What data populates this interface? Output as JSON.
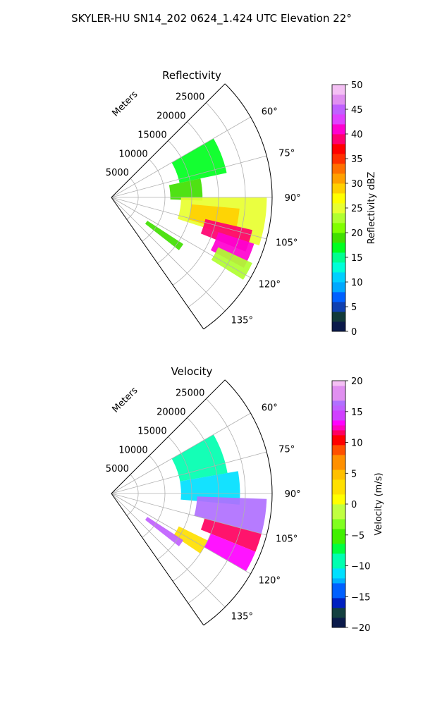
{
  "suptitle": "SKYLER-HU  SN14_202  0624_1.424 UTC Elevation 22°",
  "chart_data": [
    {
      "type": "polar-sector",
      "title": "Reflectivity",
      "radial_label": "Meters",
      "radial_ticks": [
        "5000",
        "10000",
        "15000",
        "20000",
        "25000"
      ],
      "angle_ticks": [
        "60°",
        "75°",
        "90°",
        "105°",
        "120°",
        "135°"
      ],
      "angle_range_deg": [
        45,
        145
      ],
      "radius_max_m": 30000,
      "grid": true,
      "colorbar": {
        "label": "Reflectivity dBZ",
        "ticks": [
          "0",
          "5",
          "10",
          "15",
          "20",
          "25",
          "30",
          "35",
          "40",
          "45",
          "50"
        ],
        "range": [
          0,
          50
        ]
      },
      "echoes": [
        {
          "az": [
            60,
            78
          ],
          "r": [
            13000,
            22000
          ],
          "value": 17
        },
        {
          "az": [
            78,
            92
          ],
          "r": [
            11000,
            17000
          ],
          "value": 18
        },
        {
          "az": [
            90,
            108
          ],
          "r": [
            13000,
            29000
          ],
          "value": 24
        },
        {
          "az": [
            95,
            106
          ],
          "r": [
            15000,
            24000
          ],
          "value": 28
        },
        {
          "az": [
            103,
            112
          ],
          "r": [
            18000,
            27000
          ],
          "value": 38
        },
        {
          "az": [
            108,
            118
          ],
          "r": [
            21000,
            28000
          ],
          "value": 40
        },
        {
          "az": [
            115,
            122
          ],
          "r": [
            22000,
            29000
          ],
          "value": 22
        },
        {
          "az": [
            123,
            128
          ],
          "r": [
            8000,
            16000
          ],
          "value": 18
        }
      ]
    },
    {
      "type": "polar-sector",
      "title": "Velocity",
      "radial_label": "Meters",
      "radial_ticks": [
        "5000",
        "10000",
        "15000",
        "20000",
        "25000"
      ],
      "angle_ticks": [
        "60°",
        "75°",
        "90°",
        "105°",
        "120°",
        "135°"
      ],
      "angle_range_deg": [
        45,
        145
      ],
      "radius_max_m": 30000,
      "grid": true,
      "colorbar": {
        "label": "Velocity (m/s)",
        "ticks": [
          "−20",
          "−15",
          "−10",
          "−5",
          "0",
          "5",
          "10",
          "15",
          "20"
        ],
        "range": [
          -20,
          20
        ]
      },
      "echoes": [
        {
          "az": [
            60,
            80
          ],
          "r": [
            13000,
            22000
          ],
          "value": -10
        },
        {
          "az": [
            80,
            95
          ],
          "r": [
            13000,
            24000
          ],
          "value": -12
        },
        {
          "az": [
            92,
            105
          ],
          "r": [
            16000,
            29000
          ],
          "value": 16
        },
        {
          "az": [
            105,
            112
          ],
          "r": [
            18000,
            29000
          ],
          "value": 11
        },
        {
          "az": [
            112,
            120
          ],
          "r": [
            20000,
            29000
          ],
          "value": 13
        },
        {
          "az": [
            116,
            124
          ],
          "r": [
            14000,
            20000
          ],
          "value": 2
        },
        {
          "az": [
            123,
            128
          ],
          "r": [
            8000,
            16000
          ],
          "value": 15
        }
      ]
    }
  ],
  "colors": {
    "background": "#ffffff",
    "grid": "#b0b0b0",
    "axis": "#000000"
  }
}
